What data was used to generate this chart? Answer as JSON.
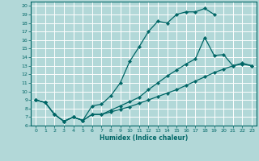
{
  "xlabel": "Humidex (Indice chaleur)",
  "bg_color": "#b2d8d8",
  "grid_color": "#ffffff",
  "line_color": "#006666",
  "xlim": [
    -0.5,
    23.5
  ],
  "ylim": [
    6,
    20.5
  ],
  "xticks": [
    0,
    1,
    2,
    3,
    4,
    5,
    6,
    7,
    8,
    9,
    10,
    11,
    12,
    13,
    14,
    15,
    16,
    17,
    18,
    19,
    20,
    21,
    22,
    23
  ],
  "yticks": [
    6,
    7,
    8,
    9,
    10,
    11,
    12,
    13,
    14,
    15,
    16,
    17,
    18,
    19,
    20
  ],
  "curve1_x": [
    0,
    1,
    2,
    3,
    4,
    5,
    6,
    7,
    8,
    9,
    10,
    11,
    12,
    13,
    14,
    15,
    16,
    17,
    18,
    19
  ],
  "curve1_y": [
    9.0,
    8.7,
    7.3,
    6.5,
    7.0,
    6.6,
    8.3,
    8.5,
    9.5,
    11.0,
    13.5,
    15.2,
    17.0,
    18.2,
    18.0,
    19.0,
    19.3,
    19.3,
    19.7,
    19.0
  ],
  "curve2_x": [
    0,
    1,
    2,
    3,
    4,
    5,
    6,
    7,
    8,
    9,
    10,
    11,
    12,
    13,
    14,
    15,
    16,
    17,
    18,
    19,
    20,
    21,
    22,
    23
  ],
  "curve2_y": [
    9.0,
    8.7,
    7.3,
    6.5,
    7.0,
    6.6,
    7.3,
    7.3,
    7.8,
    8.3,
    8.8,
    9.3,
    10.2,
    11.0,
    11.8,
    12.5,
    13.2,
    13.8,
    16.3,
    14.2,
    14.3,
    13.0,
    13.2,
    13.0
  ],
  "curve3_x": [
    0,
    1,
    2,
    3,
    4,
    5,
    6,
    7,
    8,
    9,
    10,
    11,
    12,
    13,
    14,
    15,
    16,
    17,
    18,
    19,
    20,
    21,
    22,
    23
  ],
  "curve3_y": [
    9.0,
    8.7,
    7.3,
    6.5,
    7.0,
    6.6,
    7.3,
    7.3,
    7.6,
    7.9,
    8.2,
    8.6,
    9.0,
    9.4,
    9.8,
    10.2,
    10.7,
    11.2,
    11.7,
    12.2,
    12.6,
    13.0,
    13.3,
    13.0
  ]
}
